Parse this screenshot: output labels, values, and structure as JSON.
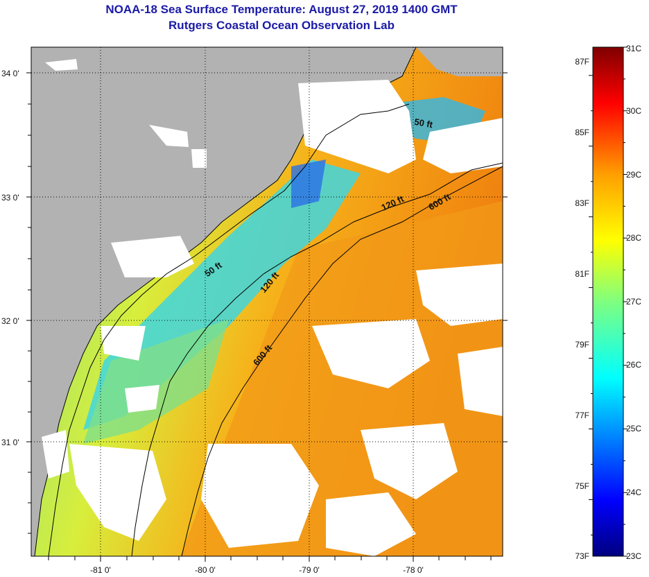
{
  "title": "NOAA-18 Sea Surface Temperature:  August 27, 2019 1400 GMT",
  "subtitle": "Rutgers Coastal Ocean Observation Lab",
  "map": {
    "lat_labels": [
      "34 0'",
      "33 0'",
      "32 0'",
      "31 0'"
    ],
    "lon_labels": [
      "-81 0'",
      "-80 0'",
      "-79 0'",
      "-78 0'"
    ],
    "contour_labels": [
      {
        "text": "50 ft",
        "id": "contour-50ft-north"
      },
      {
        "text": "120 ft",
        "id": "contour-120ft-north"
      },
      {
        "text": "600 ft",
        "id": "contour-600ft-north"
      },
      {
        "text": "50 ft",
        "id": "contour-50ft-south"
      },
      {
        "text": "120 ft",
        "id": "contour-120ft-south"
      },
      {
        "text": "600 ft",
        "id": "contour-600ft-south"
      }
    ],
    "colors": {
      "land": "#b2b2b2",
      "cloud": "#ffffff",
      "coastline": "#000000",
      "graticule": "#000000"
    }
  },
  "colorbar": {
    "fahrenheit_labels": [
      "87F",
      "85F",
      "83F",
      "81F",
      "79F",
      "77F",
      "75F",
      "73F"
    ],
    "celsius_labels": [
      "31C",
      "30C",
      "29C",
      "28C",
      "27C",
      "26C",
      "25C",
      "24C",
      "23C"
    ],
    "range_c": [
      23,
      31
    ],
    "colormap": "jet"
  }
}
